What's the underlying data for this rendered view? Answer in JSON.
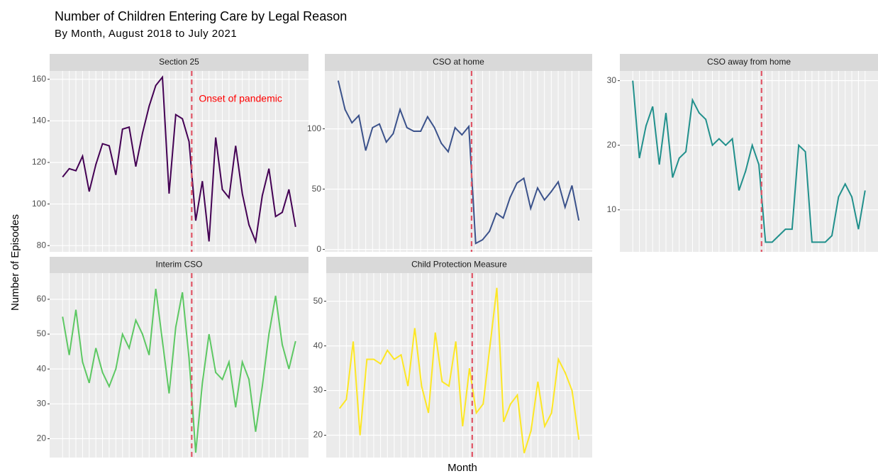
{
  "title": "Number of Children Entering Care by Legal Reason",
  "subtitle": "By Month, August 2018 to July 2021",
  "x_label": "Month",
  "y_label": "Number of Episodes",
  "chart_data": [
    {
      "type": "line",
      "title": "Section 25",
      "color": "#440154",
      "categories": [
        null,
        null,
        null,
        null,
        null,
        null,
        null,
        null,
        null,
        null,
        null,
        null,
        null,
        null,
        null,
        null,
        null,
        null,
        null,
        null,
        null,
        null,
        null,
        null,
        null,
        null,
        null,
        null,
        null,
        null,
        null,
        null,
        null,
        null,
        null,
        null
      ],
      "values": [
        113,
        117,
        116,
        123,
        106,
        119,
        129,
        128,
        114,
        136,
        137,
        118,
        134,
        147,
        157,
        161,
        105,
        143,
        141,
        130,
        92,
        111,
        82,
        132,
        107,
        103,
        128,
        105,
        90,
        82,
        104,
        117,
        94,
        96,
        107,
        89
      ],
      "ylim": [
        77,
        164
      ],
      "yticks": [
        80,
        100,
        120,
        140,
        160
      ],
      "grid": true,
      "vline_x": 19.4,
      "vline_color": "#e15566",
      "annotation": {
        "text": "Onset of pandemic",
        "color": "#ff0000"
      }
    },
    {
      "type": "line",
      "title": "CSO at home",
      "color": "#3b528b",
      "categories": [
        null,
        null,
        null,
        null,
        null,
        null,
        null,
        null,
        null,
        null,
        null,
        null,
        null,
        null,
        null,
        null,
        null,
        null,
        null,
        null,
        null,
        null,
        null,
        null,
        null,
        null,
        null,
        null,
        null,
        null,
        null,
        null,
        null,
        null,
        null,
        null
      ],
      "values": [
        140,
        116,
        105,
        111,
        82,
        101,
        104,
        89,
        96,
        116,
        101,
        98,
        98,
        110,
        101,
        88,
        81,
        101,
        95,
        102,
        5,
        8,
        15,
        30,
        26,
        43,
        55,
        59,
        34,
        51,
        41,
        48,
        56,
        35,
        53,
        24
      ],
      "ylim": [
        -2,
        148
      ],
      "yticks": [
        0,
        50,
        100
      ],
      "grid": true,
      "vline_x": 19.4,
      "vline_color": "#e15566"
    },
    {
      "type": "line",
      "title": "CSO away from home",
      "color": "#21908c",
      "categories": [
        null,
        null,
        null,
        null,
        null,
        null,
        null,
        null,
        null,
        null,
        null,
        null,
        null,
        null,
        null,
        null,
        null,
        null,
        null,
        null,
        null,
        null,
        null,
        null,
        null,
        null,
        null,
        null,
        null,
        null,
        null,
        null,
        null,
        null,
        null,
        null
      ],
      "values": [
        30,
        18,
        23,
        26,
        17,
        25,
        15,
        18,
        19,
        27,
        25,
        24,
        20,
        21,
        20,
        21,
        13,
        16,
        20,
        17,
        5,
        5,
        6,
        7,
        7,
        20,
        19,
        5,
        5,
        5,
        6,
        12,
        14,
        12,
        7,
        13
      ],
      "ylim": [
        3.5,
        31.5
      ],
      "yticks": [
        10,
        20,
        30
      ],
      "grid": true,
      "vline_x": 19.4,
      "vline_color": "#e15566"
    },
    {
      "type": "line",
      "title": "Interim CSO",
      "color": "#5dc863",
      "categories": [
        null,
        null,
        null,
        null,
        null,
        null,
        null,
        null,
        null,
        null,
        null,
        null,
        null,
        null,
        null,
        null,
        null,
        null,
        null,
        null,
        null,
        null,
        null,
        null,
        null,
        null,
        null,
        null,
        null,
        null,
        null,
        null,
        null,
        null,
        null,
        null
      ],
      "values": [
        55,
        44,
        57,
        42,
        36,
        46,
        39,
        35,
        40,
        50,
        46,
        54,
        50,
        44,
        63,
        48,
        33,
        52,
        62,
        43,
        16,
        36,
        50,
        39,
        37,
        42,
        29,
        42,
        37,
        22,
        35,
        50,
        61,
        47,
        40,
        48
      ],
      "ylim": [
        14.6,
        67.5
      ],
      "yticks": [
        20,
        30,
        40,
        50,
        60
      ],
      "grid": true,
      "vline_x": 19.4,
      "vline_color": "#e15566"
    },
    {
      "type": "line",
      "title": "Child Protection Measure",
      "color": "#fde725",
      "categories": [
        null,
        null,
        null,
        null,
        null,
        null,
        null,
        null,
        null,
        null,
        null,
        null,
        null,
        null,
        null,
        null,
        null,
        null,
        null,
        null,
        null,
        null,
        null,
        null,
        null,
        null,
        null,
        null,
        null,
        null,
        null,
        null,
        null,
        null,
        null,
        null
      ],
      "values": [
        26,
        28,
        41,
        20,
        37,
        37,
        36,
        39,
        37,
        38,
        31,
        44,
        31,
        25,
        43,
        32,
        31,
        41,
        22,
        35,
        25,
        27,
        40,
        53,
        23,
        27,
        29,
        16,
        21,
        32,
        22,
        25,
        37,
        34,
        30,
        19
      ],
      "ylim": [
        15,
        56.3
      ],
      "yticks": [
        20,
        30,
        40,
        50
      ],
      "grid": true,
      "vline_x": 19.4,
      "vline_color": "#e15566"
    }
  ]
}
